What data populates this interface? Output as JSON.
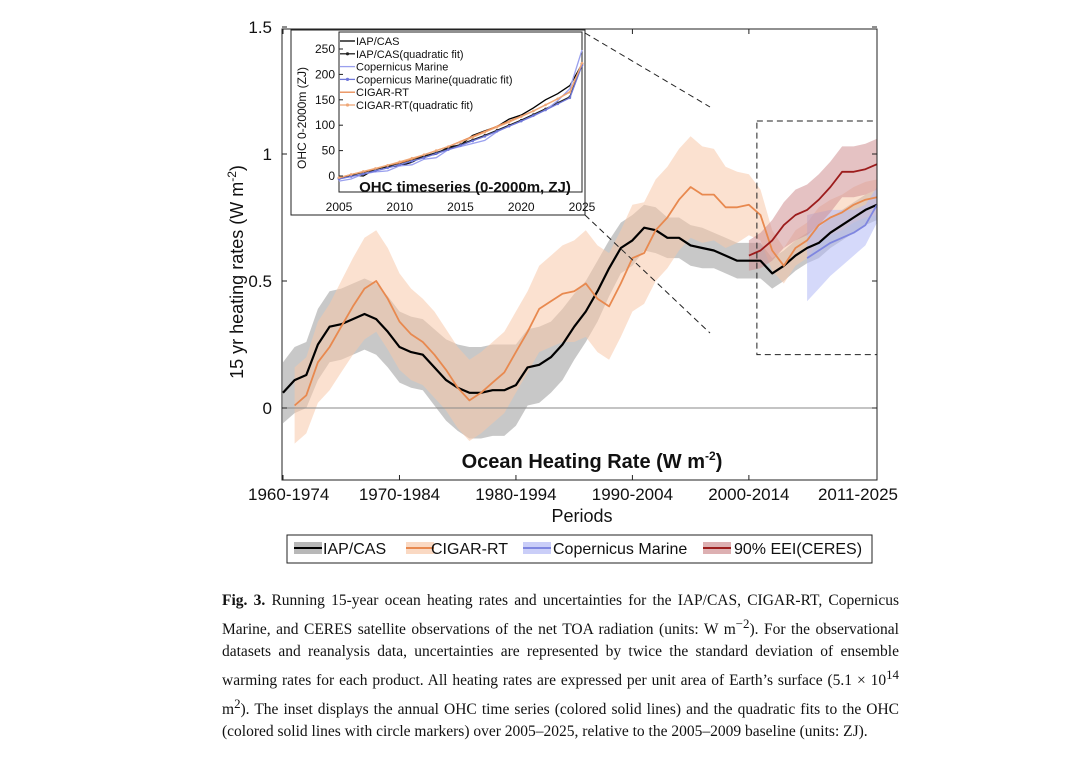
{
  "chart_data": {
    "type": "line",
    "title": "Ocean Heating Rate (W m-2)",
    "title_text": "Ocean Heating Rate (W m",
    "title_sup": "-2",
    "title_close": ")",
    "xlabel": "Periods",
    "ylabel": "15 yr heating rates (W m",
    "ylabel_sup": "-2",
    "ylabel_close": ")",
    "ylim": [
      -0.27,
      1.5
    ],
    "yticks": [
      0,
      0.5,
      1,
      1.5
    ],
    "ytick_labels": [
      "0",
      "0.5",
      "1",
      "1.5"
    ],
    "x_range": [
      1960,
      2011
    ],
    "xticks": [
      1960,
      1970,
      1980,
      1990,
      2000,
      2011
    ],
    "xtick_labels": [
      "1960-1974",
      "1970-1984",
      "1980-1994",
      "1990-2004",
      "2000-2014",
      "2011-2025"
    ],
    "series": [
      {
        "name": "IAP/CAS",
        "color": "#000000",
        "band_color": "#9a9a9a",
        "x": [
          1960,
          1961,
          1962,
          1963,
          1964,
          1965,
          1966,
          1967,
          1968,
          1969,
          1970,
          1971,
          1972,
          1973,
          1974,
          1975,
          1976,
          1977,
          1978,
          1979,
          1980,
          1981,
          1982,
          1983,
          1984,
          1985,
          1986,
          1987,
          1988,
          1989,
          1990,
          1991,
          1992,
          1993,
          1994,
          1995,
          1996,
          1997,
          1998,
          1999,
          2000,
          2001,
          2002,
          2003,
          2004,
          2005,
          2006,
          2007,
          2008,
          2009,
          2010,
          2011
        ],
        "values": [
          0.06,
          0.11,
          0.13,
          0.25,
          0.32,
          0.33,
          0.35,
          0.37,
          0.35,
          0.3,
          0.24,
          0.22,
          0.21,
          0.16,
          0.11,
          0.08,
          0.06,
          0.06,
          0.07,
          0.07,
          0.09,
          0.16,
          0.17,
          0.2,
          0.25,
          0.32,
          0.38,
          0.46,
          0.55,
          0.63,
          0.66,
          0.71,
          0.7,
          0.67,
          0.67,
          0.64,
          0.63,
          0.62,
          0.6,
          0.58,
          0.58,
          0.58,
          0.53,
          0.56,
          0.6,
          0.63,
          0.65,
          0.69,
          0.72,
          0.75,
          0.78,
          0.8
        ],
        "band": [
          0.12,
          0.13,
          0.13,
          0.14,
          0.14,
          0.14,
          0.14,
          0.14,
          0.14,
          0.14,
          0.14,
          0.14,
          0.14,
          0.15,
          0.16,
          0.17,
          0.18,
          0.18,
          0.18,
          0.18,
          0.16,
          0.15,
          0.15,
          0.14,
          0.14,
          0.13,
          0.12,
          0.12,
          0.11,
          0.1,
          0.1,
          0.09,
          0.09,
          0.08,
          0.08,
          0.08,
          0.08,
          0.07,
          0.07,
          0.07,
          0.07,
          0.07,
          0.06,
          0.06,
          0.06,
          0.06,
          0.06,
          0.06,
          0.06,
          0.06,
          0.06,
          0.06
        ]
      },
      {
        "name": "CIGAR-RT",
        "color": "#e8894f",
        "band_color": "#f8c9aa",
        "x": [
          1961,
          1962,
          1963,
          1964,
          1965,
          1966,
          1967,
          1968,
          1969,
          1970,
          1971,
          1972,
          1973,
          1974,
          1975,
          1976,
          1977,
          1978,
          1979,
          1980,
          1981,
          1982,
          1983,
          1984,
          1985,
          1986,
          1987,
          1988,
          1989,
          1990,
          1991,
          1992,
          1993,
          1994,
          1995,
          1996,
          1997,
          1998,
          1999,
          2000,
          2001,
          2002,
          2003,
          2004,
          2005,
          2006,
          2007,
          2008,
          2009,
          2010,
          2011
        ],
        "values": [
          0.01,
          0.05,
          0.18,
          0.24,
          0.32,
          0.4,
          0.47,
          0.5,
          0.43,
          0.34,
          0.29,
          0.26,
          0.21,
          0.15,
          0.08,
          0.03,
          0.06,
          0.1,
          0.14,
          0.22,
          0.3,
          0.39,
          0.42,
          0.45,
          0.46,
          0.49,
          0.43,
          0.4,
          0.49,
          0.59,
          0.61,
          0.7,
          0.75,
          0.82,
          0.87,
          0.84,
          0.84,
          0.79,
          0.79,
          0.8,
          0.76,
          0.62,
          0.56,
          0.63,
          0.66,
          0.72,
          0.75,
          0.77,
          0.8,
          0.82,
          0.83
        ],
        "band": [
          0.15,
          0.15,
          0.16,
          0.17,
          0.18,
          0.19,
          0.2,
          0.2,
          0.2,
          0.19,
          0.18,
          0.17,
          0.17,
          0.16,
          0.16,
          0.16,
          0.16,
          0.16,
          0.16,
          0.16,
          0.16,
          0.17,
          0.18,
          0.19,
          0.2,
          0.21,
          0.21,
          0.21,
          0.21,
          0.21,
          0.2,
          0.2,
          0.2,
          0.2,
          0.2,
          0.19,
          0.18,
          0.16,
          0.14,
          0.12,
          0.1,
          0.08,
          0.07,
          0.07,
          0.07,
          0.07,
          0.07,
          0.07,
          0.07,
          0.07,
          0.07
        ]
      },
      {
        "name": "Copernicus Marine",
        "color": "#7f86e0",
        "band_color": "#b3b9f5",
        "x": [
          2005,
          2006,
          2007,
          2008,
          2009,
          2010,
          2011
        ],
        "values": [
          0.59,
          0.62,
          0.65,
          0.67,
          0.69,
          0.72,
          0.8
        ],
        "band": [
          0.17,
          0.15,
          0.13,
          0.11,
          0.09,
          0.08,
          0.07
        ]
      },
      {
        "name": "90% EEI(CERES)",
        "color": "#9c1c1c",
        "band_color": "#cf8f92",
        "x": [
          2000,
          2001,
          2002,
          2003,
          2004,
          2005,
          2006,
          2007,
          2008,
          2009,
          2010,
          2011
        ],
        "values": [
          0.6,
          0.62,
          0.66,
          0.72,
          0.76,
          0.78,
          0.82,
          0.87,
          0.93,
          0.93,
          0.94,
          0.96
        ],
        "band": [
          0.06,
          0.07,
          0.08,
          0.09,
          0.1,
          0.1,
          0.1,
          0.1,
          0.1,
          0.1,
          0.1,
          0.1
        ]
      }
    ],
    "zoom_box": {
      "x_range": [
        2000,
        2011
      ],
      "y_range": [
        0.21,
        1.13
      ]
    },
    "legend": {
      "placement": "bottom-center",
      "entries": [
        "IAP/CAS",
        "CIGAR-RT",
        "Copernicus Marine",
        "90% EEI(CERES)"
      ]
    },
    "inset": {
      "type": "line",
      "title": "OHC timeseries (0-2000m, ZJ)",
      "ylabel": "OHC 0-2000m (ZJ)",
      "xlim": [
        2005,
        2025
      ],
      "ylim": [
        -15,
        285
      ],
      "xticks": [
        2005,
        2010,
        2015,
        2020,
        2025
      ],
      "xtick_labels": [
        "2005",
        "2010",
        "2015",
        "2020",
        "2025"
      ],
      "yticks": [
        0,
        50,
        100,
        150,
        200,
        250
      ],
      "ytick_labels": [
        "0",
        "50",
        "100",
        "150",
        "200",
        "250"
      ],
      "legend_placement": "top-left",
      "series": [
        {
          "name": "IAP/CAS",
          "color": "#000000",
          "marker": false,
          "x": [
            2005,
            2006,
            2007,
            2008,
            2009,
            2010,
            2011,
            2012,
            2013,
            2014,
            2015,
            2016,
            2017,
            2018,
            2019,
            2020,
            2021,
            2022,
            2023,
            2024,
            2025
          ],
          "values": [
            -6,
            2,
            0,
            14,
            18,
            20,
            27,
            40,
            43,
            57,
            61,
            80,
            89,
            97,
            112,
            120,
            134,
            150,
            162,
            178,
            220
          ]
        },
        {
          "name": "IAP/CAS(quadratic fit)",
          "color": "#222222",
          "marker": true,
          "x": [
            2005,
            2006,
            2007,
            2008,
            2009,
            2010,
            2011,
            2012,
            2013,
            2014,
            2015,
            2016,
            2017,
            2018,
            2019,
            2020,
            2021,
            2022,
            2023,
            2024,
            2025
          ],
          "values": [
            -4,
            2,
            7,
            13,
            19,
            25,
            32,
            39,
            46,
            54,
            62,
            71,
            80,
            90,
            100,
            110,
            121,
            132,
            144,
            156,
            221
          ]
        },
        {
          "name": "Copernicus Marine",
          "color": "#9aa0ee",
          "marker": false,
          "x": [
            2005,
            2006,
            2007,
            2008,
            2009,
            2010,
            2011,
            2012,
            2013,
            2014,
            2015,
            2016,
            2017,
            2018,
            2019,
            2020,
            2021,
            2022,
            2023,
            2024,
            2025
          ],
          "values": [
            -10,
            -6,
            4,
            8,
            10,
            20,
            22,
            33,
            36,
            52,
            58,
            64,
            70,
            87,
            98,
            108,
            118,
            130,
            148,
            172,
            248
          ]
        },
        {
          "name": "Copernicus Marine(quadratic fit)",
          "color": "#6f77d8",
          "marker": true,
          "x": [
            2005,
            2006,
            2007,
            2008,
            2009,
            2010,
            2011,
            2012,
            2013,
            2014,
            2015,
            2016,
            2017,
            2018,
            2019,
            2020,
            2021,
            2022,
            2023,
            2024,
            2025
          ],
          "values": [
            -6,
            -1,
            4,
            10,
            16,
            22,
            29,
            36,
            44,
            52,
            60,
            69,
            78,
            88,
            98,
            108,
            119,
            130,
            142,
            154,
            218
          ]
        },
        {
          "name": "CIGAR-RT",
          "color": "#e8894f",
          "marker": false,
          "x": [
            2005,
            2006,
            2007,
            2008,
            2009,
            2010,
            2011,
            2012,
            2013,
            2014,
            2015,
            2016,
            2017,
            2018,
            2019,
            2020,
            2021,
            2022,
            2023,
            2024,
            2025
          ],
          "values": [
            -4,
            3,
            8,
            14,
            21,
            26,
            33,
            42,
            50,
            58,
            68,
            78,
            88,
            98,
            108,
            118,
            128,
            140,
            152,
            166,
            222
          ]
        },
        {
          "name": "CIGAR-RT(quadratic fit)",
          "color": "#efa878",
          "marker": true,
          "x": [
            2005,
            2006,
            2007,
            2008,
            2009,
            2010,
            2011,
            2012,
            2013,
            2014,
            2015,
            2016,
            2017,
            2018,
            2019,
            2020,
            2021,
            2022,
            2023,
            2024,
            2025
          ],
          "values": [
            -3,
            3,
            9,
            15,
            21,
            28,
            35,
            42,
            50,
            58,
            67,
            76,
            86,
            96,
            106,
            117,
            128,
            140,
            152,
            165,
            222
          ]
        }
      ]
    }
  },
  "caption": {
    "label": "Fig. 3.",
    "text_a": " Running 15-year ocean heating rates and uncertainties for the IAP/CAS, CIGAR-RT, Copernicus Marine, and CERES satellite observations of the net TOA radiation (units: W m",
    "sup_a": "−2",
    "text_b": "). For the observational datasets and reanalysis data, uncertainties are represented by twice the standard deviation of ensemble warming rates for each product. All heating rates are expressed per unit area of Earth’s surface (5.1 × 10",
    "sup_b": "14",
    "text_c": " m",
    "sup_c": "2",
    "text_d": "). The inset displays the annual OHC time series (colored solid lines) and the quadratic fits to the OHC (colored solid lines with circle markers) over 2005–2025, relative to the 2005–2009 baseline (units: ZJ)."
  }
}
